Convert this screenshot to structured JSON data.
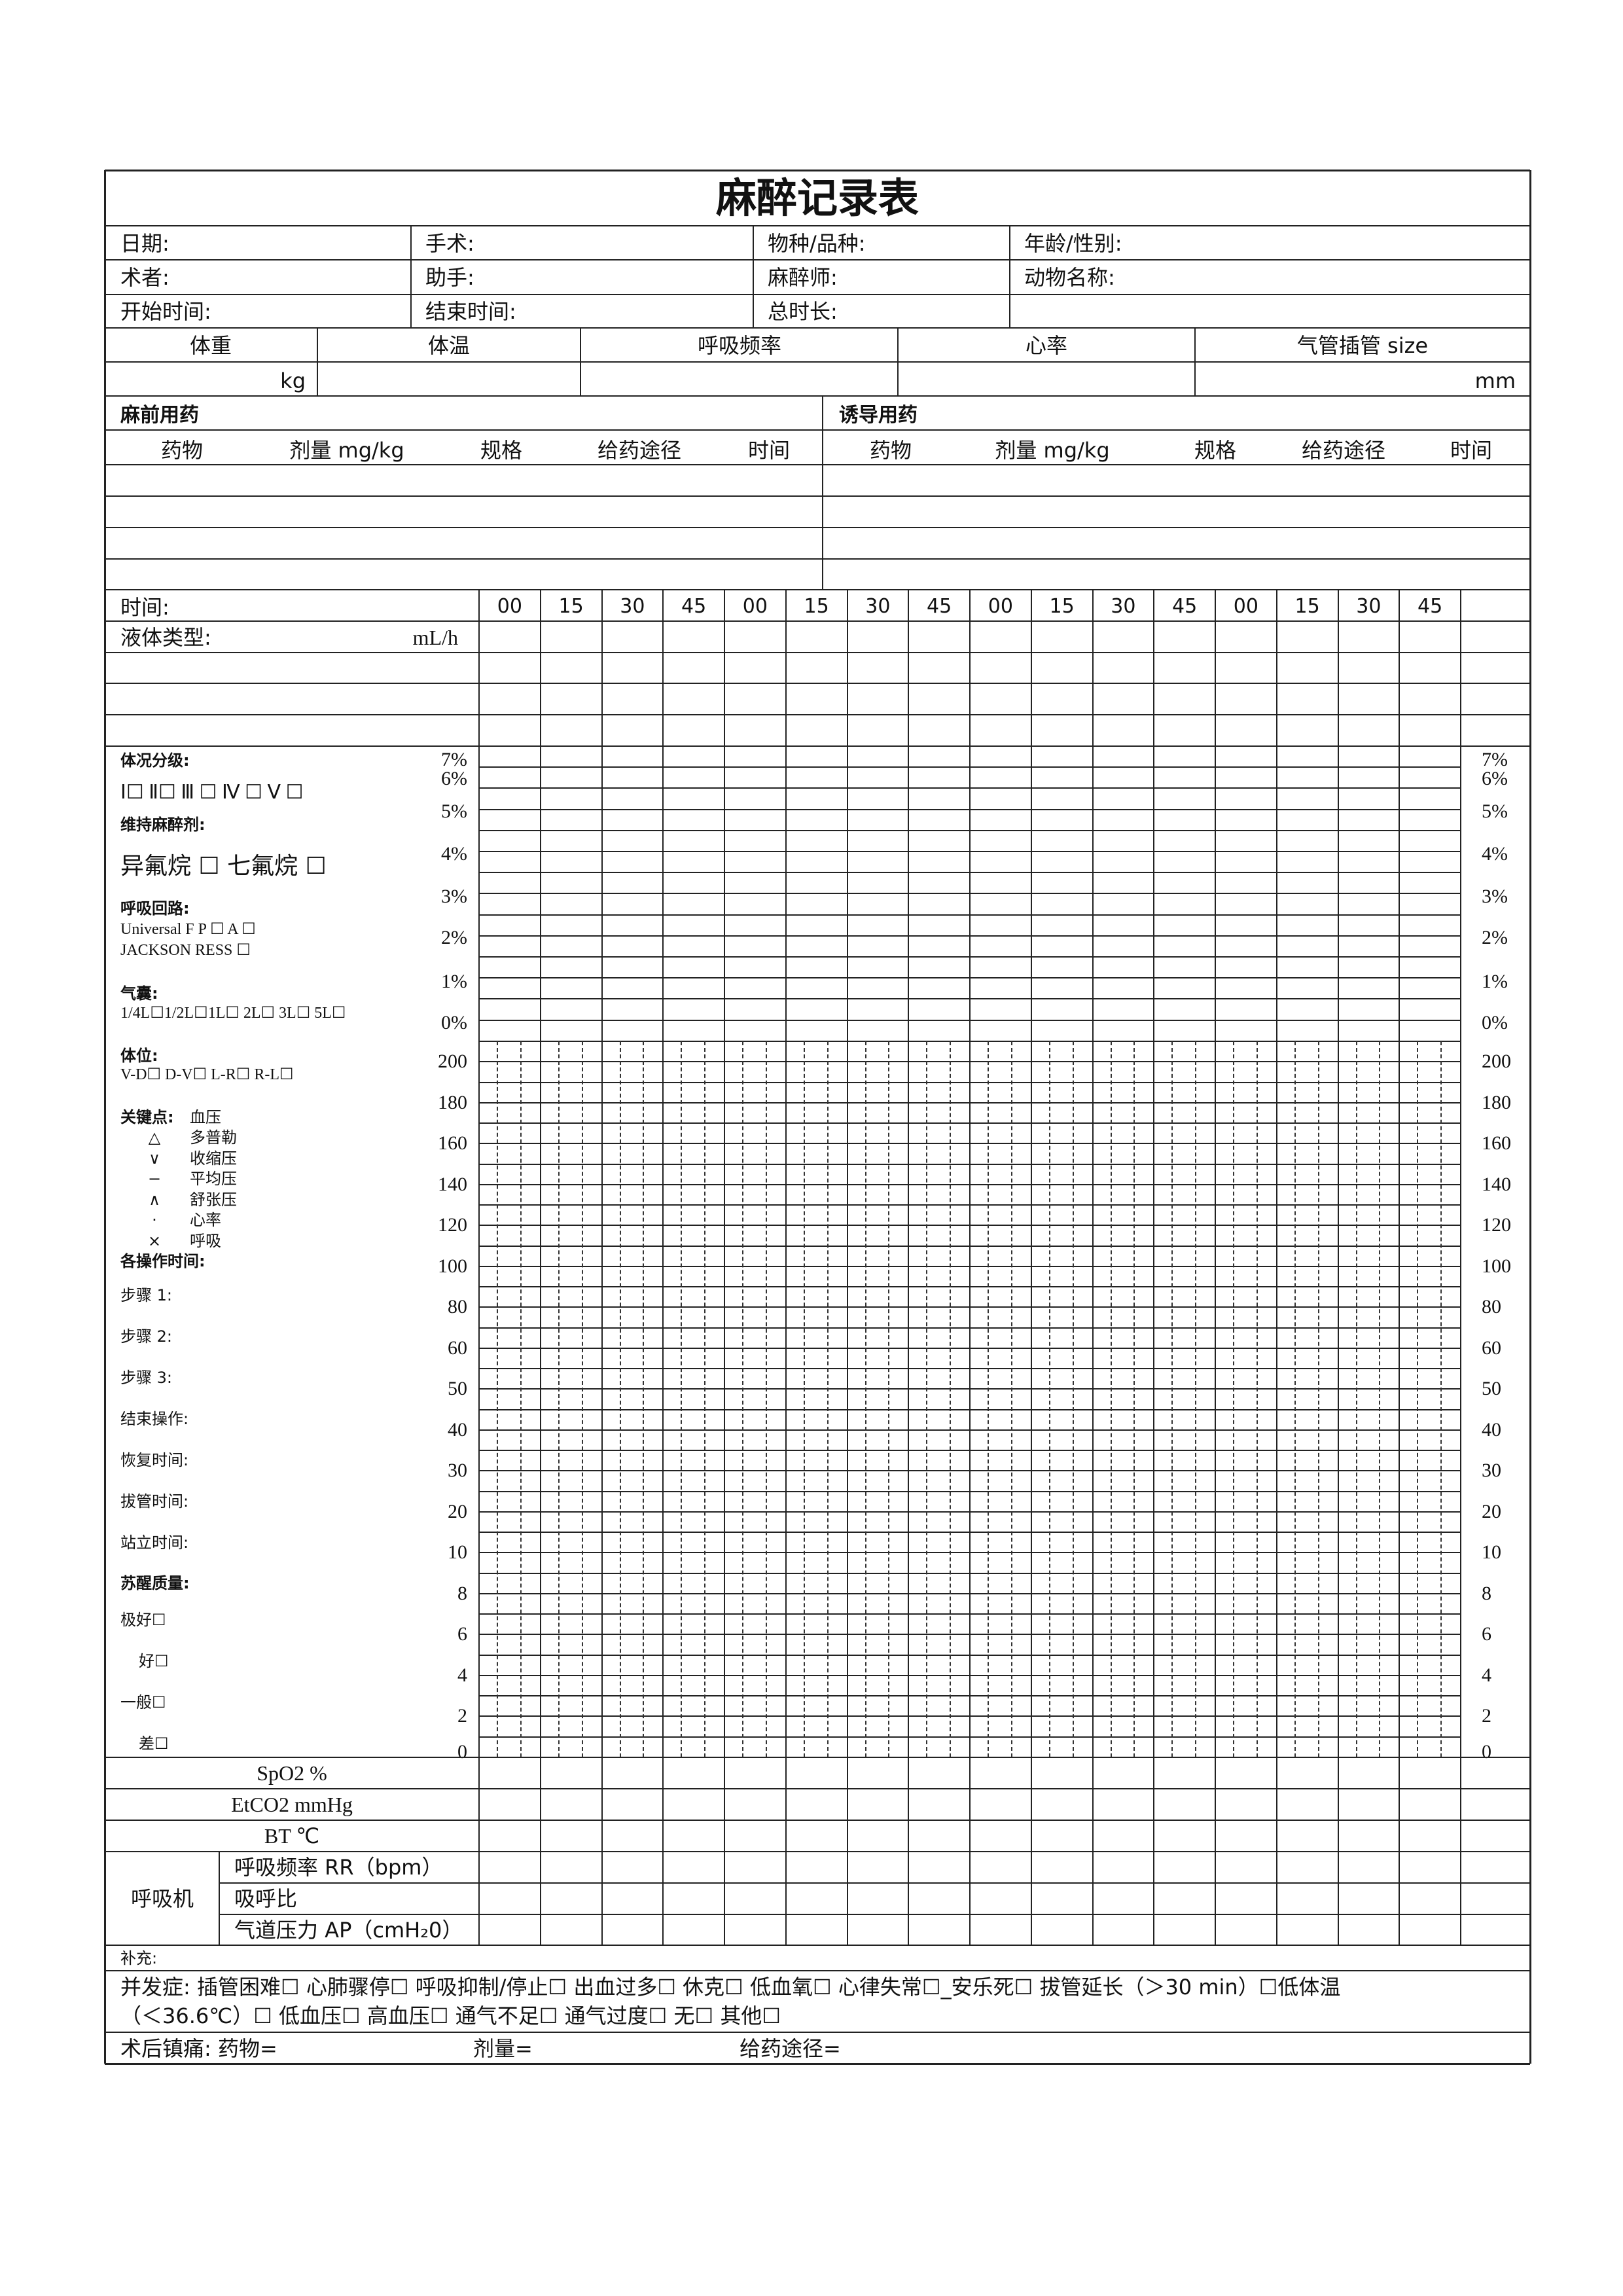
{
  "title": "麻醉记录表",
  "info": {
    "date": "日期:",
    "surgery": "手术:",
    "species": "物种/品种:",
    "age_sex": "年龄/性别:",
    "surgeon": "术者:",
    "assistant": "助手:",
    "anesthetist": "麻醉师:",
    "animal_name": "动物名称:",
    "start_time": "开始时间:",
    "end_time": "结束时间:",
    "total_duration": "总时长:"
  },
  "vitals": {
    "weight": "体重",
    "weight_unit": "kg",
    "temperature": "体温",
    "resp_rate": "呼吸频率",
    "heart_rate": "心率",
    "tube": "气管插管  size",
    "tube_unit": "mm"
  },
  "premed": {
    "title": "麻前用药",
    "columns": [
      "药物",
      "剂量 mg/kg",
      "规格",
      "给药途径",
      "时间"
    ]
  },
  "induction": {
    "title": "诱导用药",
    "columns": [
      "药物",
      "剂量 mg/kg",
      "规格",
      "给药途径",
      "时间"
    ]
  },
  "timeline": {
    "time_label": "时间:",
    "fluid_label": "液体类型:",
    "fluid_unit": "mL/h",
    "ticks": [
      "00",
      "15",
      "30",
      "45",
      "00",
      "15",
      "30",
      "45",
      "00",
      "15",
      "30",
      "45",
      "00",
      "15",
      "30",
      "45"
    ]
  },
  "percent_scale": [
    "7%",
    "6%",
    "5%",
    "4%",
    "3%",
    "2%",
    "1%",
    "0%"
  ],
  "value_scale": [
    "200",
    "180",
    "160",
    "140",
    "120",
    "100",
    "80",
    "60",
    "50",
    "40",
    "30",
    "20",
    "10",
    "8",
    "6",
    "4",
    "2",
    "0"
  ],
  "left_panel": {
    "asa_title": "体况分级:",
    "asa_options": "Ⅰ☐  Ⅱ☐  Ⅲ ☐  Ⅳ ☐  Ⅴ ☐",
    "maint_title": "维持麻醉剂:",
    "maint_options": "异氟烷 ☐     七氟烷 ☐",
    "circuit_title": "呼吸回路:",
    "circuit_line1": "Universal F       P ☐    A ☐",
    "circuit_line2": "JACKSON RESS            ☐",
    "bag_title": "气囊:",
    "bag_options": "1/4L☐1/2L☐1L☐  2L☐  3L☐  5L☐",
    "position_title": "体位:",
    "position_options": "V-D☐     D-V☐     L-R☐  R-L☐",
    "key_title": "关键点:",
    "key_bp": "血压",
    "legend": [
      {
        "symbol": "△",
        "label": "多普勒"
      },
      {
        "symbol": "∨",
        "label": "收缩压"
      },
      {
        "symbol": "−",
        "label": "平均压"
      },
      {
        "symbol": "∧",
        "label": "舒张压"
      },
      {
        "symbol": "·",
        "label": "心率"
      },
      {
        "symbol": "×",
        "label": "呼吸"
      }
    ],
    "ops_title": "各操作时间:",
    "ops": [
      "步骤 1:",
      "步骤 2:",
      "步骤 3:",
      "结束操作:",
      "恢复时间:",
      "拔管时间:",
      "站立时间:"
    ],
    "recovery_title": "苏醒质量:",
    "recovery": [
      "极好☐",
      "好☐",
      "一般☐",
      "差☐"
    ]
  },
  "monitor_rows": [
    "SpO2 %",
    "EtCO2 mmHg",
    "BT  ℃"
  ],
  "ventilator": {
    "label": "呼吸机",
    "rows": [
      "呼吸频率 RR（bpm）",
      "吸呼比",
      "气道压力 AP（cmH₂0）"
    ]
  },
  "supplement": "补充:",
  "complications": {
    "line1": "并发症:  插管困难☐   心肺骤停☐   呼吸抑制/停止☐   出血过多☐   休克☐   低血氧☐   心律失常☐_安乐死☐   拔管延长（＞30 min）☐低体温",
    "line2": "（＜36.6℃）☐    低血压☐     高血压☐     通气不足☐     通气过度☐     无☐     其他☐"
  },
  "postop": {
    "label": "术后镇痛:  药物=",
    "dose": "剂量=",
    "route": "给药途径="
  }
}
